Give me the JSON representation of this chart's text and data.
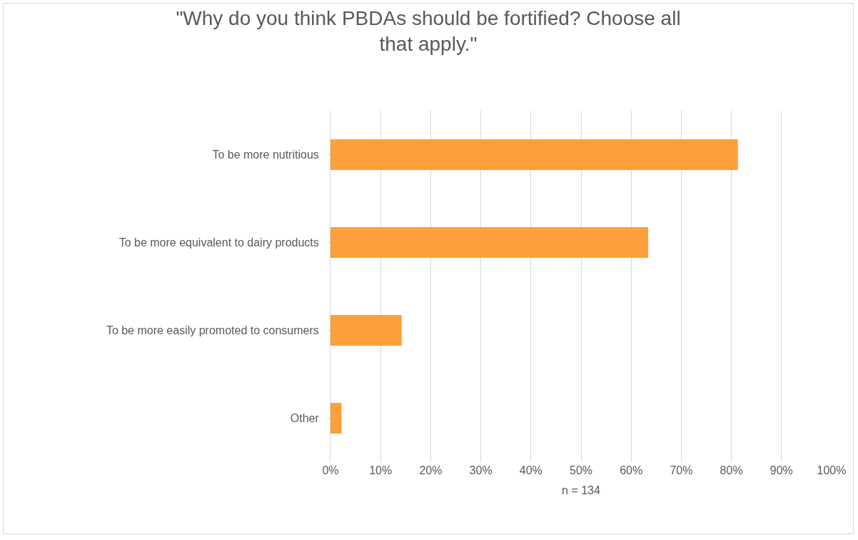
{
  "chart_data": {
    "type": "bar",
    "orientation": "horizontal",
    "title": "\"Why do you think PBDAs should be fortified? Choose all that apply.\"",
    "xlabel": "n = 134",
    "categories": [
      "To be more nutritious",
      "To be more equivalent to dairy products",
      "To be more easily promoted to consumers",
      "Other"
    ],
    "values": [
      81.3,
      63.4,
      14.2,
      2.2
    ],
    "color": "#ff9f3b",
    "xlim": [
      0,
      100
    ],
    "xticks": [
      {
        "value": 0,
        "label": "0%"
      },
      {
        "value": 10,
        "label": "10%"
      },
      {
        "value": 20,
        "label": "20%"
      },
      {
        "value": 30,
        "label": "30%"
      },
      {
        "value": 40,
        "label": "40%"
      },
      {
        "value": 50,
        "label": "50%"
      },
      {
        "value": 60,
        "label": "60%"
      },
      {
        "value": 70,
        "label": "70%"
      },
      {
        "value": 80,
        "label": "80%"
      },
      {
        "value": 90,
        "label": "90%"
      },
      {
        "value": 100,
        "label": "100%"
      }
    ],
    "grid": "x"
  }
}
